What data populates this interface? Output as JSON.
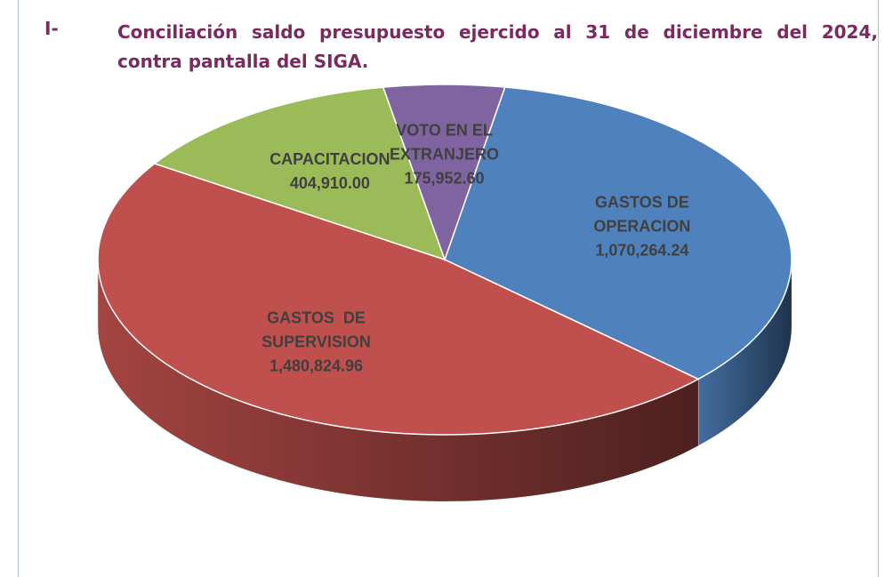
{
  "heading": {
    "number": "I-",
    "text": "Conciliación saldo presupuesto ejercido al 31 de diciembre del 2024, contra pantalla del SIGA."
  },
  "chart_data": {
    "type": "pie",
    "categories": [
      "GASTOS DE OPERACION",
      "GASTOS  DE SUPERVISION",
      "CAPACITACION",
      "VOTO EN EL EXTRANJERO"
    ],
    "values": [
      1070264.24,
      1480824.96,
      404910.0,
      175952.6
    ],
    "value_labels": [
      "1,070,264.24",
      "1,480,824.96",
      "404,910.00",
      "175,952.60"
    ],
    "colors": [
      "#4f81bd",
      "#c0504d",
      "#9bbb59",
      "#8064a2"
    ]
  }
}
